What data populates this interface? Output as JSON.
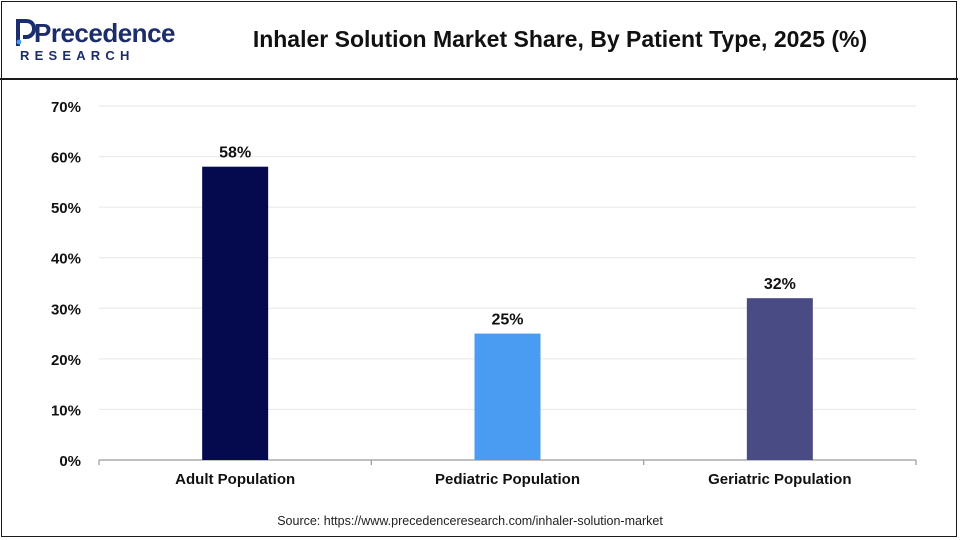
{
  "brand": {
    "name_line1": "Precedence",
    "name_line2": "RESEARCH",
    "color": "#1c2d6b"
  },
  "title": "Inhaler Solution Market Share, By Patient Type, 2025 (%)",
  "source": "Source: https://www.precedenceresearch.com/inhaler-solution-market",
  "chart_data": {
    "type": "bar",
    "title": "Inhaler Solution Market Share, By Patient Type, 2025 (%)",
    "categories": [
      "Adult Population",
      "Pediatric Population",
      "Geriatric Population"
    ],
    "values": [
      58,
      25,
      32
    ],
    "data_labels": [
      "58%",
      "25%",
      "32%"
    ],
    "colors": [
      "#050a4e",
      "#4a9cf2",
      "#494b85"
    ],
    "xlabel": "",
    "ylabel": "",
    "ylim": [
      0,
      70
    ],
    "yticks": [
      0,
      10,
      20,
      30,
      40,
      50,
      60,
      70
    ],
    "ytick_labels": [
      "0%",
      "10%",
      "20%",
      "30%",
      "40%",
      "50%",
      "60%",
      "70%"
    ],
    "grid": true,
    "legend": "none"
  }
}
